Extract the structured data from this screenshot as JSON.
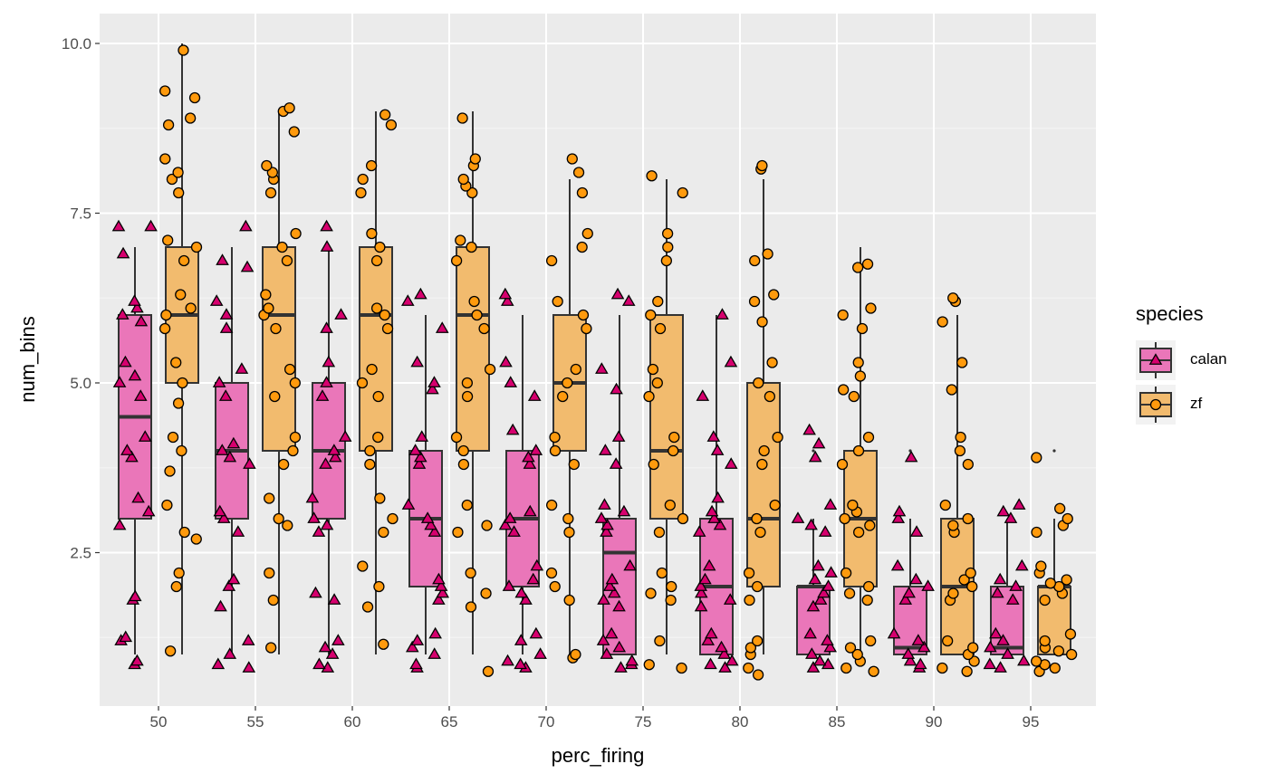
{
  "chart_data": {
    "type": "boxplot",
    "xlabel": "perc_firing",
    "ylabel": "num_bins",
    "categories": [
      "50",
      "55",
      "60",
      "65",
      "70",
      "75",
      "80",
      "85",
      "90",
      "95"
    ],
    "y_ticks": [
      "2.5",
      "5.0",
      "7.5",
      "10.0"
    ],
    "ylim": [
      0.7,
      10.3
    ],
    "grid": true,
    "legend": {
      "title": "species",
      "placement": "right",
      "entries": [
        {
          "label": "calan",
          "shape": "triangle"
        },
        {
          "label": "zf",
          "shape": "circle"
        }
      ]
    },
    "series": [
      {
        "name": "calan",
        "box_fill": "#ea76b9",
        "point_fill": "#d6006e",
        "boxes": [
          {
            "min": 1,
            "q1": 3,
            "median": 4.5,
            "q3": 6,
            "max": 7,
            "points": [
              0.85,
              0.9,
              1.2,
              1.25,
              1.8,
              1.85,
              2.9,
              3.1,
              3.3,
              3.9,
              4.0,
              4.2,
              4.8,
              5.0,
              5.1,
              5.3,
              5.9,
              6.0,
              6.1,
              6.2,
              6.9,
              7.3,
              7.3
            ]
          },
          {
            "min": 1,
            "q1": 3,
            "median": 4,
            "q3": 5,
            "max": 7,
            "points": [
              0.8,
              0.85,
              1.0,
              1.2,
              1.7,
              2.0,
              2.1,
              2.8,
              3.0,
              3.1,
              3.8,
              3.9,
              4.0,
              4.1,
              4.8,
              5.0,
              5.2,
              5.8,
              6.0,
              6.2,
              6.7,
              6.8,
              7.3
            ]
          },
          {
            "min": 1,
            "q1": 3,
            "median": 4,
            "q3": 5,
            "max": 7,
            "points": [
              0.8,
              0.85,
              1.0,
              1.1,
              1.2,
              1.8,
              1.9,
              2.8,
              2.9,
              3.0,
              3.3,
              3.8,
              3.9,
              4.0,
              4.2,
              4.8,
              5.0,
              5.3,
              5.8,
              6.0,
              7.0,
              7.3
            ]
          },
          {
            "min": 1,
            "q1": 2,
            "median": 3,
            "q3": 4,
            "max": 6,
            "points": [
              0.8,
              0.85,
              1.0,
              1.1,
              1.2,
              1.3,
              1.8,
              1.9,
              2.0,
              2.1,
              2.8,
              2.9,
              3.0,
              3.2,
              3.8,
              3.9,
              4.0,
              4.2,
              4.9,
              5.0,
              5.3,
              5.8,
              6.2,
              6.3
            ]
          },
          {
            "min": 1,
            "q1": 2,
            "median": 3,
            "q3": 4,
            "max": 6,
            "points": [
              0.8,
              0.85,
              0.9,
              1.0,
              1.2,
              1.3,
              1.8,
              1.9,
              2.0,
              2.1,
              2.3,
              2.8,
              2.9,
              3.0,
              3.1,
              3.8,
              3.9,
              4.0,
              4.3,
              4.8,
              5.0,
              5.3,
              6.2,
              6.3
            ]
          },
          {
            "min": 1,
            "q1": 1,
            "median": 2.5,
            "q3": 3,
            "max": 6,
            "points": [
              0.8,
              0.85,
              0.9,
              1.0,
              1.1,
              1.2,
              1.3,
              1.7,
              1.8,
              1.9,
              2.0,
              2.1,
              2.3,
              2.8,
              2.9,
              3.0,
              3.1,
              3.2,
              3.8,
              4.0,
              4.2,
              4.9,
              5.2,
              6.2,
              6.3
            ]
          },
          {
            "min": 1,
            "q1": 1,
            "median": 2,
            "q3": 3,
            "max": 6,
            "points": [
              0.8,
              0.85,
              0.9,
              1.0,
              1.1,
              1.2,
              1.3,
              1.7,
              1.8,
              1.9,
              2.0,
              2.1,
              2.3,
              2.8,
              2.9,
              3.0,
              3.1,
              3.3,
              3.8,
              4.0,
              4.2,
              4.8,
              5.3,
              6.0
            ]
          },
          {
            "min": 1,
            "q1": 1,
            "median": 2,
            "q3": 2,
            "max": 3,
            "outliers": [
              4
            ],
            "points": [
              0.8,
              0.85,
              0.9,
              1.0,
              1.1,
              1.2,
              1.3,
              1.7,
              1.8,
              1.9,
              2.0,
              2.1,
              2.2,
              2.3,
              2.8,
              2.9,
              3.0,
              3.2,
              3.9,
              4.1,
              4.3
            ]
          },
          {
            "min": 1,
            "q1": 1,
            "median": 1.1,
            "q3": 2,
            "max": 3,
            "outliers": [
              4
            ],
            "points": [
              0.8,
              0.85,
              0.9,
              1.0,
              1.1,
              1.2,
              1.3,
              1.8,
              1.9,
              2.0,
              2.1,
              2.3,
              2.8,
              3.0,
              3.1,
              3.9
            ]
          },
          {
            "min": 1,
            "q1": 1,
            "median": 1.1,
            "q3": 2,
            "max": 3,
            "points": [
              0.8,
              0.85,
              0.9,
              1.0,
              1.1,
              1.2,
              1.3,
              1.8,
              1.9,
              2.0,
              2.1,
              2.3,
              3.0,
              3.1,
              3.2
            ]
          }
        ]
      },
      {
        "name": "zf",
        "box_fill": "#f2bb6e",
        "point_fill": "#ff9a0d",
        "boxes": [
          {
            "min": 1,
            "q1": 5,
            "median": 6,
            "q3": 7,
            "max": 10,
            "points": [
              1.05,
              2.0,
              2.2,
              2.7,
              2.8,
              3.2,
              3.7,
              4.0,
              4.2,
              4.7,
              5.0,
              5.3,
              5.8,
              6.0,
              6.1,
              6.3,
              6.8,
              7.0,
              7.1,
              7.8,
              8.0,
              8.1,
              8.3,
              8.8,
              8.9,
              9.2,
              9.3,
              9.9
            ]
          },
          {
            "min": 1,
            "q1": 4,
            "median": 6,
            "q3": 7,
            "max": 9,
            "points": [
              1.1,
              1.8,
              2.2,
              2.9,
              3.0,
              3.3,
              3.8,
              4.0,
              4.2,
              4.8,
              5.0,
              5.2,
              5.8,
              6.0,
              6.1,
              6.3,
              6.8,
              7.0,
              7.2,
              7.8,
              8.0,
              8.1,
              8.2,
              8.7,
              9.0,
              9.05
            ]
          },
          {
            "min": 1,
            "q1": 4,
            "median": 6,
            "q3": 7,
            "max": 9,
            "points": [
              1.15,
              1.7,
              2.0,
              2.3,
              2.8,
              3.0,
              3.3,
              3.8,
              4.0,
              4.2,
              4.8,
              5.0,
              5.2,
              5.8,
              6.0,
              6.1,
              6.8,
              7.0,
              7.2,
              7.8,
              8.0,
              8.2,
              8.8,
              8.95
            ]
          },
          {
            "min": 1,
            "q1": 4,
            "median": 6,
            "q3": 7,
            "max": 9,
            "points": [
              0.75,
              1.7,
              1.9,
              2.2,
              2.8,
              2.9,
              3.2,
              3.8,
              4.0,
              4.2,
              4.8,
              5.0,
              5.2,
              5.8,
              6.0,
              6.2,
              6.8,
              7.0,
              7.1,
              7.8,
              7.9,
              8.0,
              8.2,
              8.3,
              8.9
            ]
          },
          {
            "min": 1,
            "q1": 4,
            "median": 5,
            "q3": 6,
            "max": 8,
            "points": [
              0.95,
              1.0,
              1.8,
              2.0,
              2.2,
              2.8,
              3.0,
              3.2,
              3.8,
              4.0,
              4.2,
              4.8,
              5.0,
              5.2,
              5.8,
              6.0,
              6.2,
              6.8,
              7.0,
              7.2,
              7.8,
              8.1,
              8.3
            ]
          },
          {
            "min": 1,
            "q1": 3,
            "median": 4,
            "q3": 6,
            "max": 8,
            "points": [
              0.8,
              0.85,
              1.2,
              1.8,
              1.9,
              2.0,
              2.2,
              2.8,
              3.0,
              3.2,
              3.8,
              4.0,
              4.2,
              4.8,
              5.0,
              5.2,
              5.8,
              6.0,
              6.2,
              6.8,
              7.0,
              7.2,
              7.8,
              8.05
            ]
          },
          {
            "min": 1,
            "q1": 2,
            "median": 3,
            "q3": 5,
            "max": 8,
            "points": [
              0.7,
              0.8,
              1.0,
              1.1,
              1.2,
              1.8,
              2.0,
              2.2,
              2.8,
              3.0,
              3.2,
              3.8,
              4.0,
              4.2,
              4.8,
              5.0,
              5.3,
              5.9,
              6.2,
              6.3,
              6.8,
              6.9,
              8.15,
              8.2
            ]
          },
          {
            "min": 1,
            "q1": 2,
            "median": 3,
            "q3": 4,
            "max": 7,
            "points": [
              0.75,
              0.8,
              0.9,
              1.0,
              1.1,
              1.2,
              1.8,
              1.9,
              2.0,
              2.2,
              2.8,
              2.9,
              3.0,
              3.1,
              3.2,
              3.8,
              4.0,
              4.2,
              4.8,
              4.9,
              5.1,
              5.3,
              5.8,
              6.0,
              6.1,
              6.7,
              6.75
            ]
          },
          {
            "min": 1,
            "q1": 1,
            "median": 2,
            "q3": 3,
            "max": 6,
            "points": [
              0.75,
              0.8,
              0.9,
              1.0,
              1.1,
              1.2,
              1.8,
              1.9,
              2.0,
              2.1,
              2.2,
              2.8,
              2.9,
              3.0,
              3.2,
              3.8,
              4.0,
              4.2,
              4.9,
              5.3,
              5.9,
              6.2,
              6.25
            ]
          },
          {
            "min": 1,
            "q1": 1,
            "median": 2,
            "q3": 2,
            "max": 3,
            "outliers": [
              4
            ],
            "points": [
              0.75,
              0.8,
              0.85,
              0.9,
              1.0,
              1.05,
              1.1,
              1.2,
              1.3,
              1.8,
              1.9,
              2.0,
              2.05,
              2.1,
              2.2,
              2.3,
              2.8,
              2.9,
              3.0,
              3.15,
              3.9
            ]
          }
        ]
      }
    ]
  }
}
